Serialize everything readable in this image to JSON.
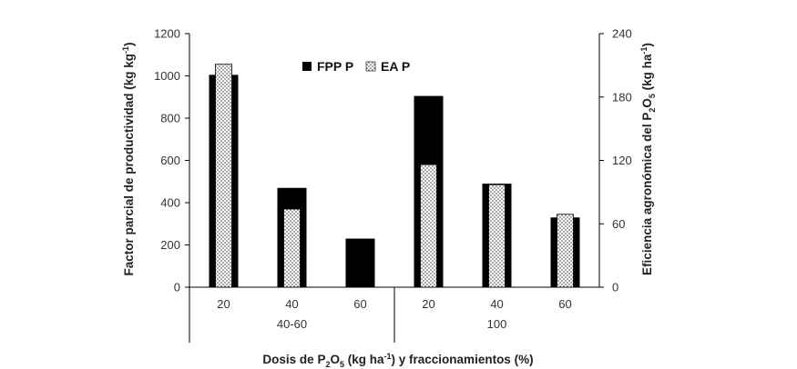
{
  "chart_data": {
    "type": "bar",
    "title": "",
    "x_axis_title": {
      "prefix": "Dosis de P",
      "sub": "2",
      "mid1": "O",
      "sub2": "5",
      "mid2": "  (kg ha",
      "sup": "-1",
      "suffix": ") y fraccionamientos (%)"
    },
    "y_left_title": {
      "prefix": "Factor parcial de productividad (kg kg",
      "sup": "-1",
      "suffix": ")"
    },
    "y_right_title": {
      "prefix": "Eficiencia agronómica del P",
      "sub": "2",
      "mid": "O",
      "sub2": "5",
      "mid2": " (kg ha",
      "sup": "-1",
      "suffix": ")"
    },
    "categories": [
      "20",
      "40",
      "60",
      "20",
      "40",
      "60"
    ],
    "groups": [
      {
        "label": "40-60",
        "start": 0,
        "end": 2
      },
      {
        "label": "100",
        "start": 3,
        "end": 5
      }
    ],
    "y_left": {
      "min": 0,
      "max": 1200,
      "ticks": [
        "0",
        "200",
        "400",
        "600",
        "800",
        "1000",
        "1200"
      ]
    },
    "y_right": {
      "min": 0,
      "max": 240,
      "ticks": [
        "0",
        "60",
        "120",
        "180",
        "240"
      ]
    },
    "series": [
      {
        "name": "FPP P",
        "axis": "left",
        "style": "solid",
        "color": "#000000",
        "values": [
          1005,
          470,
          230,
          905,
          490,
          330
        ]
      },
      {
        "name": "EA P",
        "axis": "right",
        "style": "dotted",
        "color": "#000000",
        "values": [
          211,
          74,
          null,
          116,
          97,
          69
        ]
      }
    ]
  }
}
